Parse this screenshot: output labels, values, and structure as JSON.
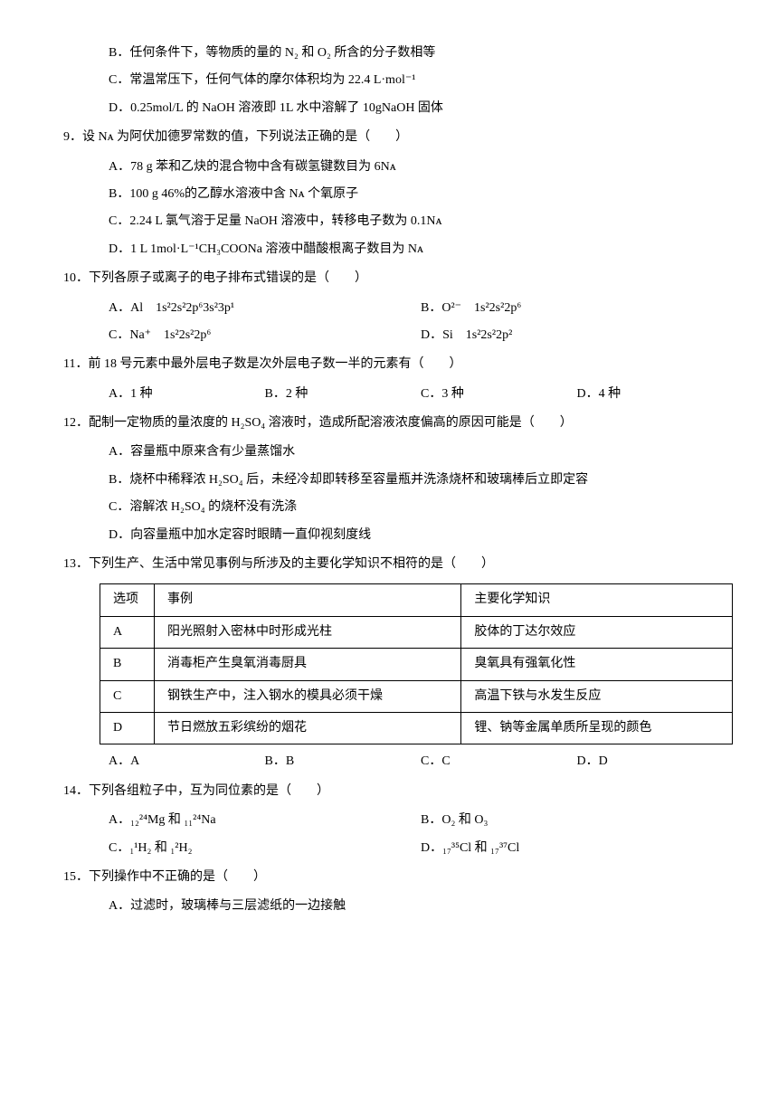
{
  "q8": {
    "B": "B．任何条件下，等物质的量的 N₂ 和 O₂ 所含的分子数相等",
    "C": "C．常温常压下，任何气体的摩尔体积均为 22.4 L·mol⁻¹",
    "D": "D．0.25mol/L 的 NaOH 溶液即 1L 水中溶解了 10gNaOH 固体"
  },
  "q9": {
    "stem": "9．设 Nᴀ 为阿伏加德罗常数的值，下列说法正确的是（　　）",
    "A": "A．78 g 苯和乙炔的混合物中含有碳氢键数目为 6Nᴀ",
    "B": "B．100 g 46%的乙醇水溶液中含 Nᴀ 个氧原子",
    "C": "C．2.24 L 氯气溶于足量 NaOH 溶液中，转移电子数为 0.1Nᴀ",
    "D": "D．1 L 1mol·L⁻¹CH₃COONa 溶液中醋酸根离子数目为 Nᴀ"
  },
  "q10": {
    "stem": "10．下列各原子或离子的电子排布式错误的是（　　）",
    "A": "A．Al　1s²2s²2p⁶3s²3p¹",
    "B": "B．O²⁻　1s²2s²2p⁶",
    "C": "C．Na⁺　1s²2s²2p⁶",
    "D": "D．Si　1s²2s²2p²"
  },
  "q11": {
    "stem": "11．前 18 号元素中最外层电子数是次外层电子数一半的元素有（　　）",
    "A": "A．1 种",
    "B": "B．2 种",
    "C": "C．3 种",
    "D": "D．4 种"
  },
  "q12": {
    "stem": "12．配制一定物质的量浓度的 H₂SO₄ 溶液时，造成所配溶液浓度偏高的原因可能是（　　）",
    "A": "A．容量瓶中原来含有少量蒸馏水",
    "B": "B．烧杯中稀释浓 H₂SO₄ 后，未经冷却即转移至容量瓶并洗涤烧杯和玻璃棒后立即定容",
    "C": "C．溶解浓 H₂SO₄ 的烧杯没有洗涤",
    "D": "D．向容量瓶中加水定容时眼睛一直仰视刻度线"
  },
  "q13": {
    "stem": "13．下列生产、生活中常见事例与所涉及的主要化学知识不相符的是（　　）",
    "th1": "选项",
    "th2": "事例",
    "th3": "主要化学知识",
    "rA1": "A",
    "rA2": "阳光照射入密林中时形成光柱",
    "rA3": "胶体的丁达尔效应",
    "rB1": "B",
    "rB2": "消毒柜产生臭氧消毒厨具",
    "rB3": "臭氧具有强氧化性",
    "rC1": "C",
    "rC2": "钢铁生产中，注入钢水的模具必须干燥",
    "rC3": "高温下铁与水发生反应",
    "rD1": "D",
    "rD2": "节日燃放五彩缤纷的烟花",
    "rD3": "锂、钠等金属单质所呈现的颜色",
    "A": "A．A",
    "B": "B．B",
    "C": "C．C",
    "D": "D．D"
  },
  "q14": {
    "stem": "14．下列各组粒子中，互为同位素的是（　　）",
    "A": "A．₁₂²⁴Mg 和 ₁₁²⁴Na",
    "B": "B．O₂ 和 O₃",
    "C": "C．₁¹H₂ 和 ₁²H₂",
    "D": "D．₁₇³⁵Cl 和 ₁₇³⁷Cl"
  },
  "q15": {
    "stem": "15．下列操作中不正确的是（　　）",
    "A": "A．过滤时，玻璃棒与三层滤纸的一边接触"
  }
}
